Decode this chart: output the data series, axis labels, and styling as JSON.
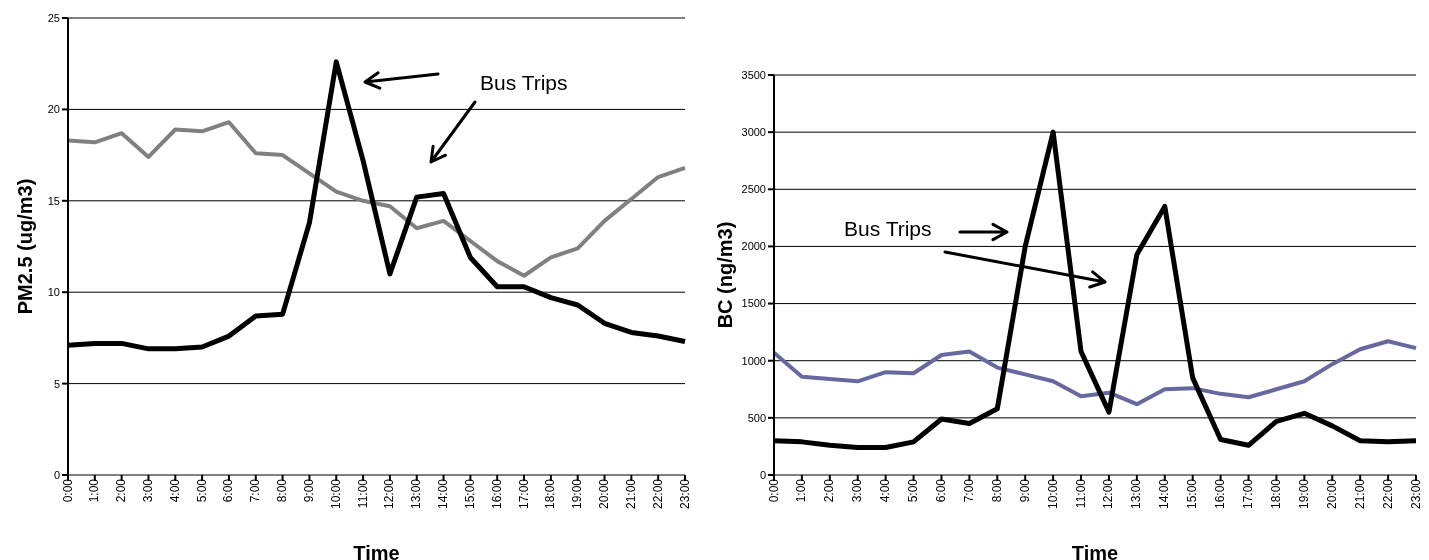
{
  "chart_data": [
    {
      "type": "line",
      "categories": [
        "0:00",
        "1:00",
        "2:00",
        "3:00",
        "4:00",
        "5:00",
        "6:00",
        "7:00",
        "8:00",
        "9:00",
        "10:00",
        "11:00",
        "12:00",
        "13:00",
        "14:00",
        "15:00",
        "16:00",
        "17:00",
        "18:00",
        "19:00",
        "20:00",
        "21:00",
        "22:00",
        "23:00"
      ],
      "xlabel": "Time",
      "ylabel": "PM2.5 (ug/m3)",
      "ylim": [
        0,
        25
      ],
      "yticks": [
        0,
        5,
        10,
        15,
        20,
        25
      ],
      "grid": "y",
      "marker": "none",
      "annotations": [
        "Bus Trips"
      ],
      "series": [
        {
          "color": "#808080",
          "values": [
            18.3,
            18.2,
            18.7,
            17.4,
            18.9,
            18.8,
            19.3,
            17.6,
            17.5,
            16.5,
            15.5,
            15.0,
            14.7,
            13.5,
            13.9,
            12.8,
            11.7,
            10.9,
            11.9,
            12.4,
            13.9,
            15.1,
            16.3,
            16.8
          ]
        },
        {
          "color": "#000000",
          "values": [
            7.1,
            7.2,
            7.2,
            6.9,
            6.9,
            7.0,
            7.6,
            8.7,
            8.8,
            13.8,
            22.6,
            17.2,
            11.0,
            15.2,
            15.4,
            11.9,
            10.3,
            10.3,
            9.7,
            9.3,
            8.3,
            7.8,
            7.6,
            7.3
          ]
        }
      ]
    },
    {
      "type": "line",
      "categories": [
        "0:00",
        "1:00",
        "2:00",
        "3:00",
        "4:00",
        "5:00",
        "6:00",
        "7:00",
        "8:00",
        "9:00",
        "10:00",
        "11:00",
        "12:00",
        "13:00",
        "14:00",
        "15:00",
        "16:00",
        "17:00",
        "18:00",
        "19:00",
        "20:00",
        "21:00",
        "22:00",
        "23:00"
      ],
      "xlabel": "Time",
      "ylabel": "BC (ng/m3)",
      "ylim": [
        0,
        3500
      ],
      "yticks": [
        0,
        500,
        1000,
        1500,
        2000,
        2500,
        3000,
        3500
      ],
      "grid": "y",
      "marker": "none",
      "annotations": [
        "Bus Trips"
      ],
      "series": [
        {
          "color": "#6868a0",
          "values": [
            1070,
            860,
            840,
            820,
            900,
            890,
            1050,
            1080,
            940,
            880,
            820,
            690,
            720,
            620,
            750,
            760,
            710,
            680,
            750,
            820,
            970,
            1100,
            1170,
            1110
          ]
        },
        {
          "color": "#000000",
          "values": [
            300,
            290,
            260,
            240,
            240,
            290,
            490,
            450,
            580,
            2000,
            3000,
            1080,
            550,
            1930,
            2350,
            850,
            310,
            260,
            470,
            540,
            430,
            300,
            290,
            300
          ]
        }
      ]
    }
  ]
}
